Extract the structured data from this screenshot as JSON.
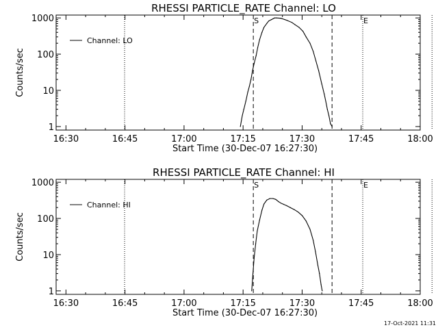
{
  "timestamp": "17-Oct-2021 11:31",
  "chart_data": [
    {
      "type": "line",
      "title": "RHESSI PARTICLE_RATE Channel: LO",
      "xlabel": "Start Time (30-Dec-07 16:27:30)",
      "ylabel": "Counts/sec",
      "yscale": "log",
      "ylim": [
        0.8,
        1200
      ],
      "xlim_minutes": [
        -2.5,
        90
      ],
      "x_ticks": [
        {
          "label": "16:30",
          "t": 0
        },
        {
          "label": "16:45",
          "t": 15
        },
        {
          "label": "17:00",
          "t": 30
        },
        {
          "label": "17:15",
          "t": 45
        },
        {
          "label": "17:30",
          "t": 60
        },
        {
          "label": "17:45",
          "t": 75
        },
        {
          "label": "18:00",
          "t": 90
        }
      ],
      "y_ticks": [
        {
          "label": "1",
          "v": 1
        },
        {
          "label": "10",
          "v": 10
        },
        {
          "label": "100",
          "v": 100
        },
        {
          "label": "1000",
          "v": 1000
        }
      ],
      "legend": {
        "label": "Channel: LO",
        "placement": "top-left"
      },
      "markers": [
        {
          "label": "S",
          "t": 47.6,
          "style": "dashed"
        },
        {
          "label": "",
          "t": 67.6,
          "style": "dashed"
        },
        {
          "label": "E",
          "t": 75.4,
          "style": "dotted"
        },
        {
          "label": "",
          "t": 14.9,
          "style": "dotted"
        },
        {
          "label": "",
          "t": 93.0,
          "style": "dotted"
        }
      ],
      "series": [
        {
          "name": "Channel: LO",
          "x": [
            44.3,
            44.8,
            45.2,
            45.7,
            46.2,
            46.6,
            47.0,
            47.4,
            47.8,
            48.3,
            48.7,
            49.2,
            49.8,
            50.3,
            51.0,
            51.5,
            52.2,
            53.0,
            53.5,
            54.6,
            55.6,
            56.2,
            57.4,
            58.2,
            59.2,
            60.2,
            61.0,
            62.0,
            62.8,
            63.5,
            64.2,
            65.0,
            65.6,
            66.0,
            66.4,
            66.8,
            67.2,
            67.6
          ],
          "y": [
            1,
            2,
            3,
            5,
            9,
            13,
            20,
            35,
            55,
            90,
            150,
            250,
            400,
            550,
            700,
            820,
            900,
            1000,
            1000,
            980,
            900,
            850,
            750,
            650,
            550,
            430,
            300,
            200,
            120,
            65,
            35,
            15,
            8,
            5,
            3,
            2,
            1.2,
            1
          ]
        }
      ]
    },
    {
      "type": "line",
      "title": "RHESSI PARTICLE_RATE Channel: HI",
      "xlabel": "Start Time (30-Dec-07 16:27:30)",
      "ylabel": "Counts/sec",
      "yscale": "log",
      "ylim": [
        0.8,
        1200
      ],
      "xlim_minutes": [
        -2.5,
        90
      ],
      "x_ticks": [
        {
          "label": "16:30",
          "t": 0
        },
        {
          "label": "16:45",
          "t": 15
        },
        {
          "label": "17:00",
          "t": 30
        },
        {
          "label": "17:15",
          "t": 45
        },
        {
          "label": "17:30",
          "t": 60
        },
        {
          "label": "17:45",
          "t": 75
        },
        {
          "label": "18:00",
          "t": 90
        }
      ],
      "y_ticks": [
        {
          "label": "1",
          "v": 1
        },
        {
          "label": "10",
          "v": 10
        },
        {
          "label": "100",
          "v": 100
        },
        {
          "label": "1000",
          "v": 1000
        }
      ],
      "legend": {
        "label": "Channel: HI",
        "placement": "top-left"
      },
      "markers": [
        {
          "label": "S",
          "t": 47.6,
          "style": "dashed"
        },
        {
          "label": "",
          "t": 67.6,
          "style": "dashed"
        },
        {
          "label": "E",
          "t": 75.4,
          "style": "dotted"
        },
        {
          "label": "",
          "t": 14.9,
          "style": "dotted"
        },
        {
          "label": "",
          "t": 93.0,
          "style": "dotted"
        }
      ],
      "series": [
        {
          "name": "Channel: HI",
          "x": [
            47.2,
            47.5,
            47.8,
            48.2,
            48.6,
            49.2,
            49.8,
            50.3,
            51.0,
            51.8,
            52.6,
            53.3,
            54.0,
            54.6,
            55.3,
            56.1,
            57.0,
            58.0,
            59.0,
            60.0,
            61.0,
            62.0,
            62.8,
            63.4,
            64.0,
            64.4,
            64.8,
            65.1
          ],
          "y": [
            1,
            3,
            8,
            20,
            45,
            90,
            170,
            250,
            320,
            355,
            355,
            335,
            290,
            265,
            245,
            225,
            200,
            175,
            150,
            120,
            85,
            50,
            25,
            12,
            5,
            3,
            1.5,
            1
          ]
        }
      ]
    }
  ]
}
